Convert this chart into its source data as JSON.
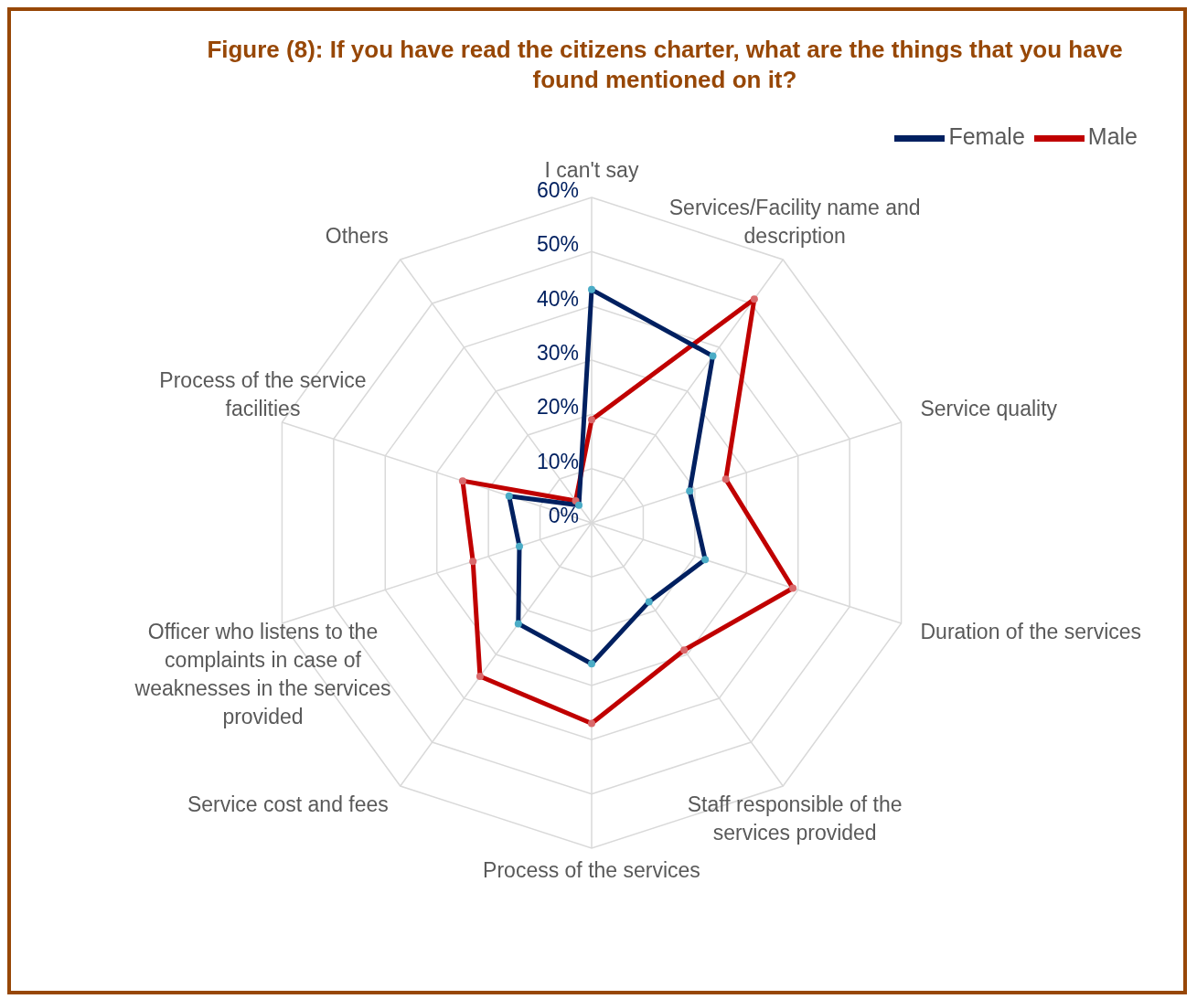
{
  "chart_data": {
    "type": "radar",
    "title": "Figure (8): If you have read the citizens charter, what are the things that you have found mentioned on it?",
    "categories": [
      "I can't say",
      "Services/Facility name and description",
      "Service quality",
      "Duration of the services",
      "Staff responsible of the services provided",
      "Process of the services",
      "Service cost and fees",
      "Officer who listens to the complaints in case of weaknesses in the services provided",
      "Process of the service facilities",
      "Others"
    ],
    "series": [
      {
        "name": "Male",
        "color": "#c00000",
        "values": [
          19,
          51,
          26,
          39,
          29,
          37,
          35,
          23,
          25,
          5
        ]
      },
      {
        "name": "Female",
        "color": "#002060",
        "values": [
          43,
          38,
          19,
          22,
          18,
          26,
          23,
          14,
          16,
          4
        ]
      }
    ],
    "ylim": [
      0,
      60
    ],
    "yticks": [
      {
        "value": 0,
        "label": "0%"
      },
      {
        "value": 10,
        "label": "10%"
      },
      {
        "value": 20,
        "label": "20%"
      },
      {
        "value": 30,
        "label": "30%"
      },
      {
        "value": 40,
        "label": "40%"
      },
      {
        "value": 50,
        "label": "50%"
      },
      {
        "value": 60,
        "label": "60%"
      }
    ],
    "grid": true,
    "legend": "top right",
    "marker": "circle",
    "line_style": "solid"
  }
}
